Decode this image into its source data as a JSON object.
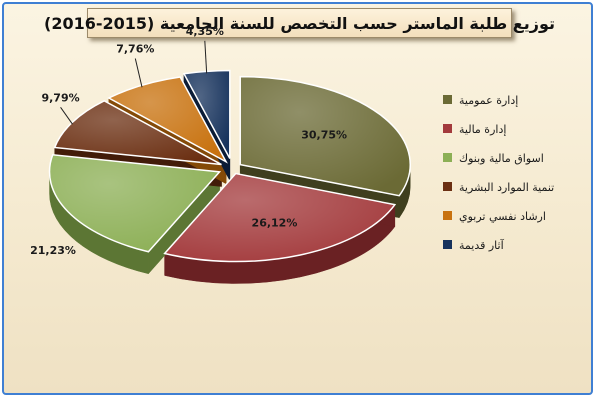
{
  "chart_data": {
    "type": "pie",
    "title": "توزيع طلبة الماستر حسب التخصص للسنة الجامعية (2015-2016)",
    "series": [
      {
        "name": "إدارة عمومية",
        "value": 30.75,
        "label": "30,75%",
        "color": "#6b6a35",
        "side": "#3f3f1e"
      },
      {
        "name": "إدارة مالية",
        "value": 26.12,
        "label": "26,12%",
        "color": "#a33a3c",
        "side": "#6a2123"
      },
      {
        "name": "اسواق مالية وبنوك",
        "value": 21.23,
        "label": "21,23%",
        "color": "#8caf55",
        "side": "#5c7634"
      },
      {
        "name": "تنمية الموارد البشرية",
        "value": 9.79,
        "label": "9,79%",
        "color": "#6b2f12",
        "side": "#421c09"
      },
      {
        "name": "ارشاد نفسي تربوي",
        "value": 7.76,
        "label": "7,76%",
        "color": "#c8720f",
        "side": "#844a08"
      },
      {
        "name": "آثار قديمة",
        "value": 4.35,
        "label": "4,35%",
        "color": "#16325c",
        "side": "#0b1c36"
      }
    ],
    "legend_position": "right"
  }
}
